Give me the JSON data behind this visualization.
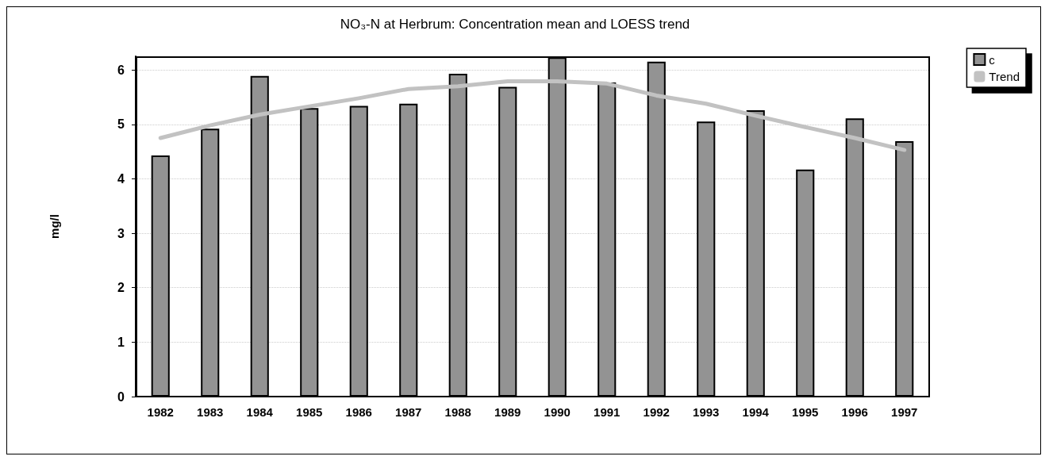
{
  "chart_data": {
    "type": "bar",
    "title": "NO₃-N at Herbrum: Concentration mean and LOESS trend",
    "ylabel": "mg/l",
    "categories": [
      "1982",
      "1983",
      "1984",
      "1985",
      "1986",
      "1987",
      "1988",
      "1989",
      "1990",
      "1991",
      "1992",
      "1993",
      "1994",
      "1995",
      "1996",
      "1997"
    ],
    "series": [
      {
        "name": "c",
        "color": "#939393",
        "values": [
          4.43,
          4.92,
          5.89,
          5.3,
          5.34,
          5.38,
          5.93,
          5.69,
          6.23,
          5.77,
          6.15,
          5.05,
          5.26,
          4.17,
          5.11,
          4.69
        ]
      },
      {
        "name": "Trend",
        "type": "line",
        "color": "#c2c2c2",
        "values": [
          4.75,
          4.98,
          5.18,
          5.33,
          5.48,
          5.65,
          5.7,
          5.79,
          5.79,
          5.75,
          5.53,
          5.38,
          5.16,
          4.95,
          4.75,
          4.53
        ]
      }
    ],
    "ylim": [
      0,
      6.25
    ],
    "yticks": [
      0,
      1,
      2,
      3,
      4,
      5,
      6
    ],
    "grid": "y",
    "legend": "top right",
    "marker": "none",
    "line_style": "solid"
  }
}
